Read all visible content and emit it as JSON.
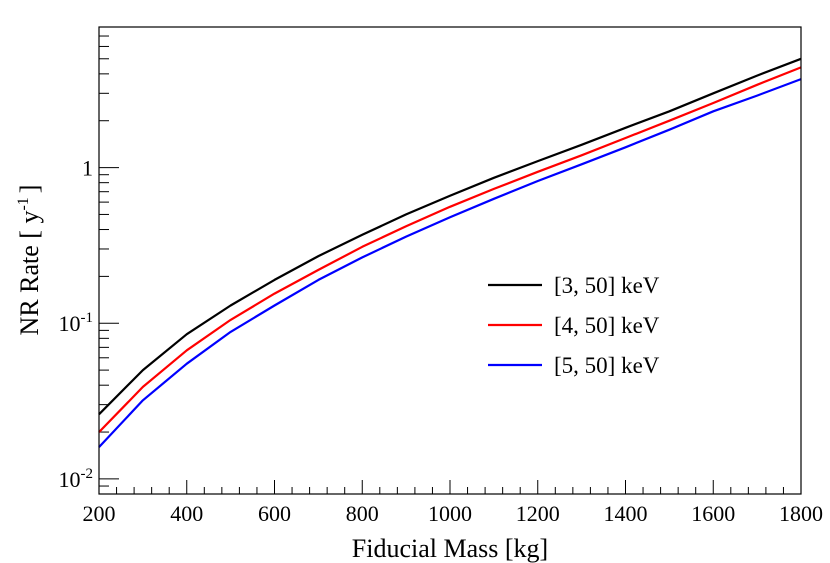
{
  "chart_data": {
    "type": "line",
    "title": "",
    "xlabel": "Fiducial Mass [kg]",
    "ylabel": {
      "main": "NR Rate [ y",
      "sup": "-1",
      "close": "]"
    },
    "xlim": [
      200,
      1800
    ],
    "ylim": [
      0.008,
      8
    ],
    "yscale": "log",
    "grid": false,
    "legend_position": "center-right",
    "x_ticks": [
      "200",
      "400",
      "600",
      "800",
      "1000",
      "1200",
      "1400",
      "1600",
      "1800"
    ],
    "y_ticks": [
      {
        "value": 0.01,
        "base": "10",
        "exp": "-2"
      },
      {
        "value": 0.1,
        "base": "10",
        "exp": "-1"
      },
      {
        "value": 1,
        "base": "1",
        "exp": ""
      }
    ],
    "x": [
      200,
      300,
      400,
      500,
      600,
      700,
      800,
      900,
      1000,
      1100,
      1200,
      1300,
      1400,
      1500,
      1600,
      1700,
      1800
    ],
    "series": [
      {
        "name": "[3, 50] keV",
        "color": "#000000",
        "values": [
          0.026,
          0.05,
          0.085,
          0.13,
          0.19,
          0.27,
          0.37,
          0.5,
          0.66,
          0.86,
          1.1,
          1.4,
          1.8,
          2.3,
          3.0,
          3.9,
          5.0
        ]
      },
      {
        "name": "[4, 50] keV",
        "color": "#ff0000",
        "values": [
          0.02,
          0.039,
          0.067,
          0.105,
          0.155,
          0.22,
          0.31,
          0.42,
          0.56,
          0.73,
          0.94,
          1.2,
          1.55,
          2.0,
          2.6,
          3.4,
          4.4
        ]
      },
      {
        "name": "[5, 50] keV",
        "color": "#0000ff",
        "values": [
          0.016,
          0.032,
          0.055,
          0.088,
          0.13,
          0.19,
          0.265,
          0.36,
          0.48,
          0.63,
          0.82,
          1.05,
          1.35,
          1.75,
          2.3,
          2.9,
          3.7
        ]
      }
    ]
  }
}
